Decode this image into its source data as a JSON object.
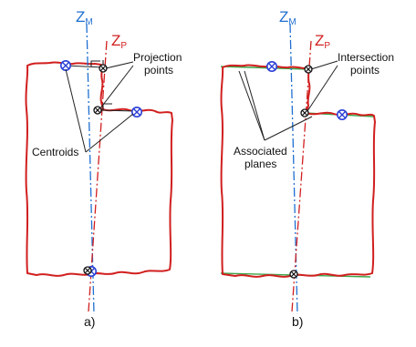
{
  "colors": {
    "profile": "#d11f1f",
    "axis_m": "#1f6fd1",
    "axis_p": "#d11f1f",
    "plane": "#3aa64a",
    "centroid": "#2b3fd6",
    "leader": "#222222"
  },
  "axes": {
    "m_main": "Z",
    "m_sub": "M",
    "p_main": "Z",
    "p_sub": "P"
  },
  "panel_a": {
    "label_projection_1": "Projection",
    "label_projection_2": "points",
    "label_centroids": "Centroids",
    "caption": "a)"
  },
  "panel_b": {
    "label_intersection_1": "Intersection",
    "label_intersection_2": "points",
    "label_associated_1": "Associated",
    "label_associated_2": "planes",
    "caption": "b)"
  },
  "icons": {
    "centroid": "crossed-circle-icon",
    "point": "crossed-dot-icon"
  }
}
